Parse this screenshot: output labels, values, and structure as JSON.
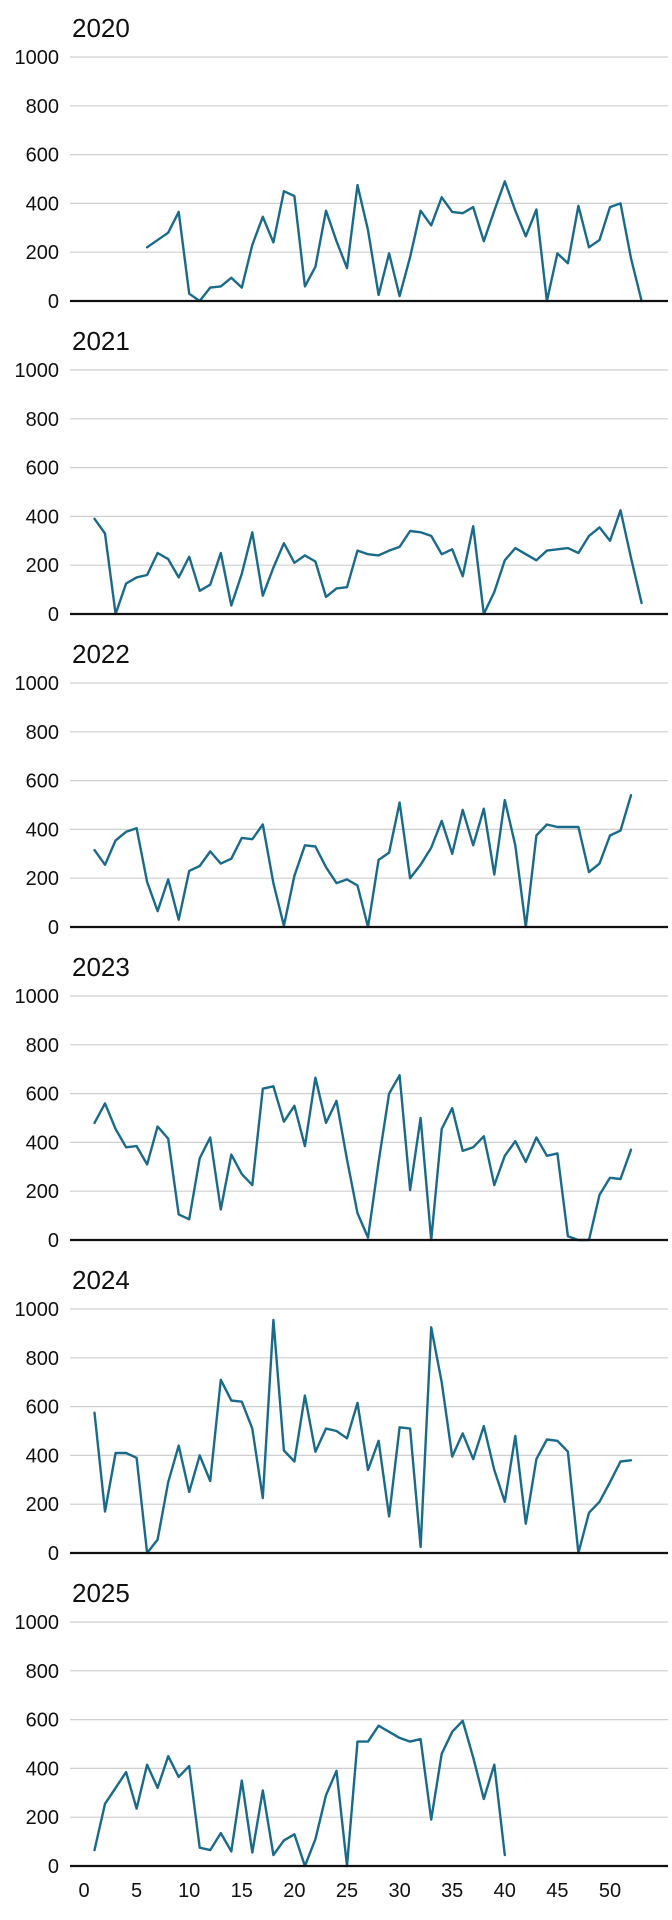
{
  "chart_data": {
    "type": "line",
    "xlabel": "",
    "ylabel": "",
    "ylim": [
      0,
      1000
    ],
    "xlim": [
      0,
      55
    ],
    "x_ticks": [
      0,
      5,
      10,
      15,
      20,
      25,
      30,
      35,
      40,
      45,
      50
    ],
    "y_ticks": [
      0,
      200,
      400,
      600,
      800,
      1000
    ],
    "grid": "horizontal",
    "line_color": "#1a6a8a",
    "panels": [
      {
        "title": "2020",
        "x": [
          6,
          8,
          9,
          10,
          11,
          12,
          13,
          14,
          15,
          16,
          17,
          18,
          19,
          20,
          21,
          22,
          23,
          24,
          25,
          26,
          27,
          28,
          29,
          30,
          31,
          32,
          33,
          34,
          35,
          36,
          37,
          38,
          39,
          40,
          41,
          42,
          43,
          44,
          45,
          46,
          47,
          48,
          49,
          50,
          51,
          52,
          53
        ],
        "values": [
          220,
          280,
          365,
          30,
          0,
          55,
          60,
          95,
          55,
          230,
          345,
          240,
          450,
          430,
          60,
          140,
          370,
          245,
          135,
          475,
          290,
          25,
          195,
          20,
          180,
          370,
          310,
          425,
          365,
          360,
          385,
          245,
          370,
          490,
          370,
          265,
          375,
          0,
          195,
          155,
          390,
          220,
          250,
          385,
          400,
          175,
          0
        ]
      },
      {
        "title": "2021",
        "x": [
          1,
          2,
          3,
          4,
          5,
          6,
          7,
          8,
          9,
          10,
          11,
          12,
          13,
          14,
          15,
          16,
          17,
          18,
          19,
          20,
          21,
          22,
          23,
          24,
          25,
          26,
          27,
          28,
          29,
          30,
          31,
          32,
          33,
          34,
          35,
          36,
          37,
          38,
          39,
          40,
          41,
          42,
          43,
          44,
          45,
          46,
          47,
          48,
          49,
          50,
          51,
          52,
          53
        ],
        "values": [
          390,
          330,
          0,
          125,
          150,
          160,
          250,
          225,
          150,
          235,
          95,
          120,
          250,
          35,
          165,
          335,
          75,
          190,
          290,
          210,
          240,
          215,
          70,
          105,
          110,
          260,
          245,
          240,
          260,
          275,
          340,
          335,
          320,
          245,
          265,
          155,
          360,
          0,
          90,
          220,
          270,
          245,
          220,
          260,
          265,
          270,
          250,
          320,
          355,
          300,
          425,
          230,
          45
        ]
      },
      {
        "title": "2022",
        "x": [
          1,
          2,
          3,
          4,
          5,
          6,
          7,
          8,
          9,
          10,
          11,
          12,
          13,
          14,
          15,
          16,
          17,
          18,
          19,
          20,
          21,
          22,
          23,
          24,
          25,
          26,
          27,
          28,
          29,
          30,
          31,
          32,
          33,
          34,
          35,
          36,
          37,
          38,
          39,
          40,
          41,
          42,
          43,
          44,
          45,
          46,
          47,
          48,
          49,
          50,
          51,
          52
        ],
        "values": [
          315,
          255,
          355,
          390,
          405,
          185,
          65,
          195,
          30,
          230,
          250,
          310,
          260,
          280,
          365,
          360,
          420,
          180,
          5,
          210,
          335,
          330,
          245,
          180,
          195,
          170,
          0,
          275,
          305,
          510,
          200,
          255,
          325,
          435,
          300,
          480,
          335,
          485,
          215,
          520,
          335,
          0,
          375,
          420,
          410,
          410,
          410,
          225,
          260,
          375,
          395,
          540
        ]
      },
      {
        "title": "2023",
        "x": [
          1,
          2,
          3,
          4,
          5,
          6,
          7,
          8,
          9,
          10,
          11,
          12,
          13,
          14,
          15,
          16,
          17,
          18,
          19,
          20,
          21,
          22,
          23,
          24,
          25,
          26,
          27,
          28,
          29,
          30,
          31,
          32,
          33,
          34,
          35,
          36,
          37,
          38,
          39,
          40,
          41,
          42,
          43,
          44,
          45,
          46,
          47,
          48,
          49,
          50,
          51,
          52
        ],
        "values": [
          480,
          560,
          455,
          380,
          385,
          310,
          465,
          415,
          105,
          85,
          335,
          420,
          125,
          350,
          270,
          225,
          620,
          630,
          485,
          550,
          385,
          665,
          480,
          570,
          330,
          110,
          10,
          320,
          600,
          675,
          205,
          500,
          0,
          455,
          540,
          365,
          380,
          425,
          225,
          345,
          405,
          320,
          420,
          345,
          355,
          15,
          0,
          0,
          185,
          255,
          250,
          370
        ]
      },
      {
        "title": "2024",
        "x": [
          1,
          2,
          3,
          4,
          5,
          6,
          7,
          8,
          9,
          10,
          11,
          12,
          13,
          14,
          15,
          16,
          17,
          18,
          19,
          20,
          21,
          22,
          23,
          24,
          25,
          26,
          27,
          28,
          29,
          30,
          31,
          32,
          33,
          34,
          35,
          36,
          37,
          38,
          39,
          40,
          41,
          42,
          43,
          44,
          45,
          46,
          47,
          48,
          49,
          50,
          51,
          52
        ],
        "values": [
          575,
          170,
          410,
          410,
          390,
          0,
          55,
          290,
          440,
          250,
          400,
          295,
          710,
          625,
          620,
          510,
          225,
          955,
          420,
          375,
          645,
          415,
          510,
          500,
          470,
          615,
          340,
          460,
          150,
          515,
          510,
          25,
          925,
          700,
          395,
          490,
          385,
          520,
          340,
          210,
          480,
          120,
          385,
          465,
          460,
          415,
          0,
          165,
          210,
          290,
          375,
          380
        ]
      },
      {
        "title": "2025",
        "x": [
          1,
          2,
          3,
          4,
          5,
          6,
          7,
          8,
          9,
          10,
          11,
          12,
          13,
          14,
          15,
          16,
          17,
          18,
          19,
          20,
          21,
          22,
          23,
          24,
          25,
          26,
          27,
          28,
          29,
          30,
          31,
          32,
          33,
          34,
          35,
          36,
          37,
          38,
          39,
          40
        ],
        "values": [
          65,
          255,
          320,
          385,
          235,
          415,
          320,
          450,
          365,
          410,
          75,
          65,
          135,
          60,
          350,
          55,
          310,
          45,
          105,
          130,
          0,
          110,
          290,
          390,
          0,
          510,
          510,
          575,
          550,
          525,
          510,
          520,
          190,
          460,
          550,
          595,
          445,
          275,
          415,
          45
        ]
      }
    ]
  }
}
